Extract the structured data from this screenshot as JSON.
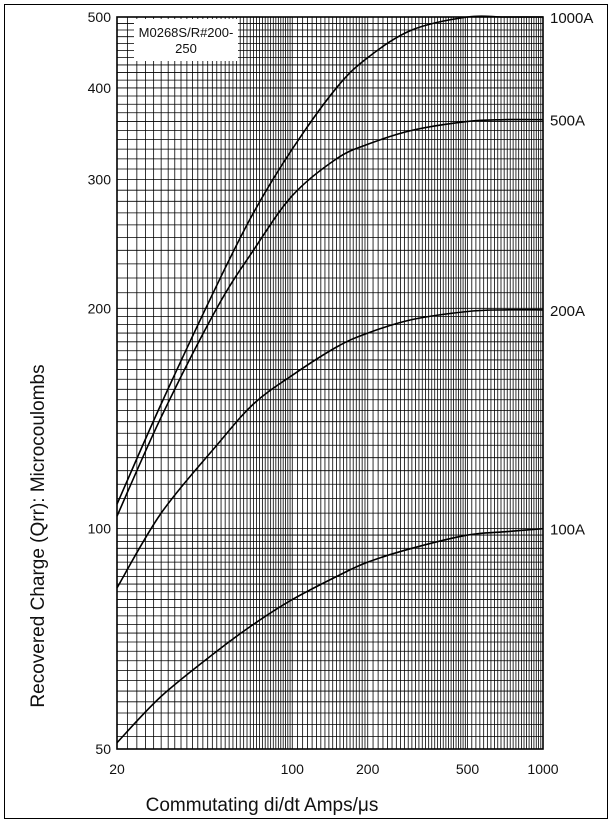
{
  "chart_data": {
    "type": "line",
    "xlabel": "Commutating di/dt Amps/μs",
    "ylabel": "Recovered Charge (Qrr): Microcoulombs",
    "x_scale": "log",
    "y_scale": "log",
    "xlim": [
      20,
      1000
    ],
    "ylim": [
      50,
      500
    ],
    "x_tick_labels": [
      "20",
      "100",
      "200",
      "500",
      "1000"
    ],
    "y_tick_labels": [
      "500",
      "400",
      "300",
      "200",
      "100",
      "50"
    ],
    "grid": true,
    "annotation_lines": [
      "M0268S/R#200-",
      "250"
    ],
    "series": [
      {
        "name": "1000A",
        "x": [
          20,
          30,
          50,
          70,
          100,
          150,
          200,
          300,
          500,
          700,
          1000
        ],
        "values": [
          108,
          148,
          215,
          270,
          330,
          400,
          440,
          480,
          505,
          505,
          505
        ]
      },
      {
        "name": "500A",
        "x": [
          20,
          30,
          50,
          70,
          100,
          150,
          200,
          300,
          500,
          700,
          1000
        ],
        "values": [
          104,
          142,
          200,
          240,
          285,
          320,
          335,
          350,
          360,
          362,
          362
        ]
      },
      {
        "name": "200A",
        "x": [
          20,
          30,
          50,
          70,
          100,
          150,
          200,
          300,
          500,
          700,
          1000
        ],
        "values": [
          83,
          105,
          130,
          148,
          162,
          177,
          185,
          193,
          198,
          199,
          199
        ]
      },
      {
        "name": "100A",
        "x": [
          20,
          30,
          50,
          70,
          100,
          150,
          200,
          300,
          500,
          700,
          1000
        ],
        "values": [
          51,
          59,
          68,
          74,
          80,
          86,
          90,
          94,
          98,
          99,
          100
        ]
      }
    ]
  }
}
